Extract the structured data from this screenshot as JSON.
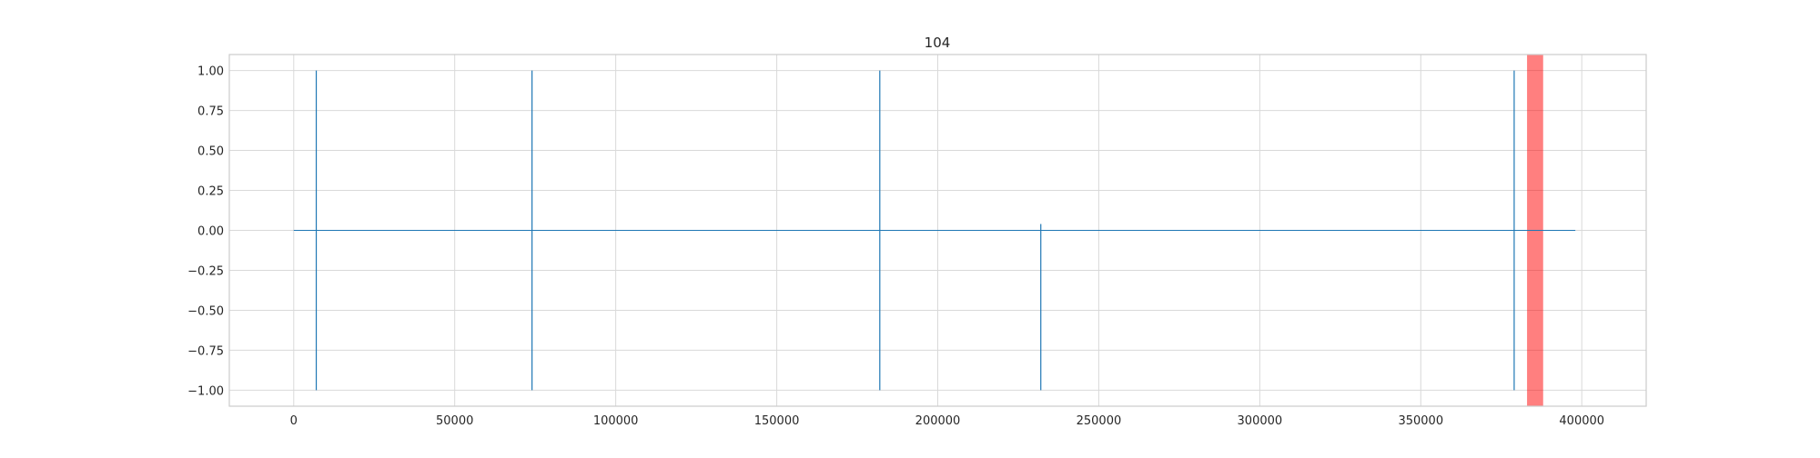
{
  "chart_data": {
    "type": "line",
    "title": "104",
    "xlabel": "",
    "ylabel": "",
    "xlim": [
      -20000,
      420000
    ],
    "ylim": [
      -1.1,
      1.1
    ],
    "grid": true,
    "x_ticks": [
      0,
      50000,
      100000,
      150000,
      200000,
      250000,
      300000,
      350000,
      400000
    ],
    "y_ticks": [
      1.0,
      0.75,
      0.5,
      0.25,
      0.0,
      -0.25,
      -0.5,
      -0.75,
      -1.0
    ],
    "x_tick_labels": [
      "0",
      "50000",
      "100000",
      "150000",
      "200000",
      "250000",
      "300000",
      "350000",
      "400000"
    ],
    "y_tick_labels": [
      "1.00",
      "0.75",
      "0.50",
      "0.25",
      "0.00",
      "−0.25",
      "−0.50",
      "−0.75",
      "−1.00"
    ],
    "series": [
      {
        "color": "#1f77b4",
        "x_range": [
          0,
          398000
        ],
        "baseline": 0.0,
        "spikes": [
          {
            "x": 7000,
            "low": -1.0,
            "high": 1.0
          },
          {
            "x": 74000,
            "low": -1.0,
            "high": 1.0
          },
          {
            "x": 182000,
            "low": -1.0,
            "high": 1.0
          },
          {
            "x": 232000,
            "low": -1.0,
            "high": 0.04
          },
          {
            "x": 379000,
            "low": -1.0,
            "high": 1.0
          }
        ]
      }
    ],
    "shaded_regions": [
      {
        "x_start": 383000,
        "x_end": 388000,
        "color": "#ff0000",
        "opacity": 0.5
      }
    ]
  }
}
